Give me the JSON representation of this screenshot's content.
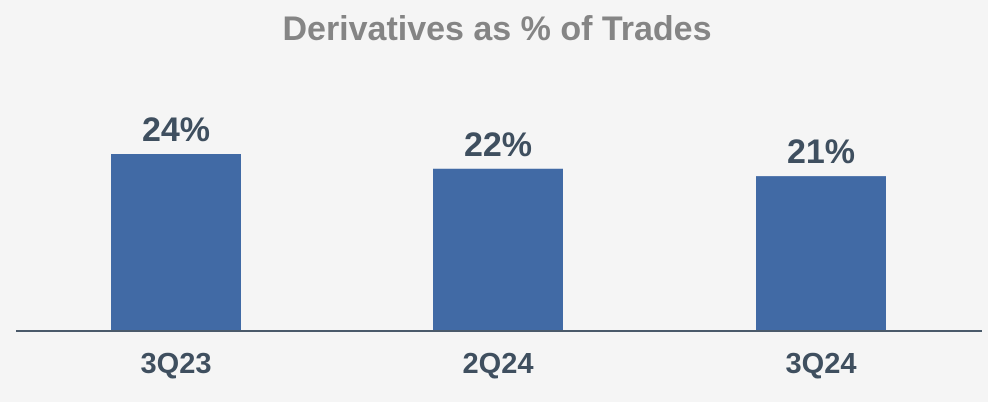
{
  "chart_data": {
    "type": "bar",
    "title": "Derivatives as % of Trades",
    "categories": [
      "3Q23",
      "2Q24",
      "3Q24"
    ],
    "values": [
      24,
      22,
      21
    ],
    "value_labels": [
      "24%",
      "22%",
      "21%"
    ],
    "unit": "%",
    "ylim": [
      0,
      24
    ],
    "grid": false,
    "legend": "none",
    "colors": {
      "bar": "#416aa5",
      "axis": "#4a5a6a",
      "text": "#3f4f5f",
      "title": "#858585",
      "background": "#f5f5f5"
    }
  }
}
